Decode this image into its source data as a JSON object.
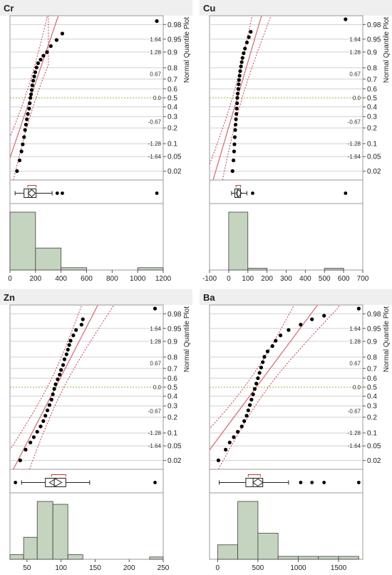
{
  "quantile_axis": {
    "label": "Normal Quantile Plot",
    "prob_ticks": [
      "0.98",
      "0.95",
      "0.9",
      "0.8",
      "0.7",
      "0.6",
      "0.5",
      "0.4",
      "0.3",
      "0.2",
      "0.1",
      "0.05",
      "0.02"
    ],
    "z_labels": [
      "1.64",
      "1.28",
      "0.67",
      "0.0",
      "-0.67",
      "-1.28",
      "-1.64"
    ]
  },
  "colors": {
    "fit_line": "#d9707a",
    "confidence_band": "#c73a52",
    "median_line": "#9ab33a",
    "hist_fill": "#c5d4be",
    "hist_stroke": "#404040",
    "bracket": "#c0392b",
    "point": "#000000",
    "grid": "#d0d0d0",
    "panel_border": "#9a9a9a",
    "header_bg": "#efefef"
  },
  "chart_data": [
    {
      "type": "histogram",
      "variable": "Cr",
      "title": "Cr",
      "xlim": [
        0,
        1200
      ],
      "x_ticks": [
        0,
        200,
        400,
        600,
        800,
        1000,
        1200
      ],
      "bins": [
        [
          0,
          200,
          1.0
        ],
        [
          200,
          400,
          0.38
        ],
        [
          400,
          600,
          0.04
        ],
        [
          1000,
          1200,
          0.04
        ]
      ],
      "boxplot": {
        "whisker_low": 40,
        "q1": 110,
        "median": 145,
        "mean": 170,
        "q3": 205,
        "whisker_high": 330,
        "bracket": [
          140,
          205
        ],
        "outliers": [
          370,
          410,
          1150
        ]
      },
      "quantile_points": [
        [
          55,
          -2.05
        ],
        [
          75,
          -1.75
        ],
        [
          90,
          -1.5
        ],
        [
          100,
          -1.3
        ],
        [
          110,
          -1.1
        ],
        [
          118,
          -0.9
        ],
        [
          125,
          -0.75
        ],
        [
          132,
          -0.6
        ],
        [
          140,
          -0.45
        ],
        [
          150,
          -0.3
        ],
        [
          155,
          -0.15
        ],
        [
          160,
          0.0
        ],
        [
          165,
          0.1
        ],
        [
          170,
          0.22
        ],
        [
          175,
          0.35
        ],
        [
          182,
          0.48
        ],
        [
          190,
          0.6
        ],
        [
          198,
          0.72
        ],
        [
          208,
          0.85
        ],
        [
          220,
          0.97
        ],
        [
          240,
          1.07
        ],
        [
          262,
          1.18
        ],
        [
          290,
          1.28
        ],
        [
          320,
          1.45
        ],
        [
          365,
          1.62
        ],
        [
          410,
          1.8
        ],
        [
          1150,
          2.15
        ]
      ],
      "fit": {
        "mean": 160,
        "sd": 95
      },
      "band_cap": 300
    },
    {
      "type": "histogram",
      "variable": "Cu",
      "title": "Cu",
      "xlim": [
        -100,
        700
      ],
      "x_ticks": [
        -100,
        0,
        100,
        200,
        300,
        400,
        500,
        600,
        700
      ],
      "bins": [
        [
          0,
          100,
          1.0
        ],
        [
          100,
          200,
          0.03
        ],
        [
          500,
          600,
          0.03
        ]
      ],
      "boxplot": {
        "whisker_low": 15,
        "q1": 32,
        "median": 45,
        "mean": 52,
        "q3": 62,
        "whisker_high": 95,
        "bracket": [
          38,
          62
        ],
        "outliers": [
          125,
          610
        ]
      },
      "quantile_points": [
        [
          20,
          -2.05
        ],
        [
          25,
          -1.75
        ],
        [
          28,
          -1.5
        ],
        [
          30,
          -1.3
        ],
        [
          32,
          -1.1
        ],
        [
          34,
          -0.9
        ],
        [
          36,
          -0.75
        ],
        [
          38,
          -0.6
        ],
        [
          40,
          -0.45
        ],
        [
          42,
          -0.3
        ],
        [
          44,
          -0.15
        ],
        [
          45,
          0.0
        ],
        [
          47,
          0.12
        ],
        [
          50,
          0.25
        ],
        [
          52,
          0.38
        ],
        [
          54,
          0.5
        ],
        [
          57,
          0.62
        ],
        [
          60,
          0.75
        ],
        [
          64,
          0.88
        ],
        [
          68,
          1.0
        ],
        [
          72,
          1.12
        ],
        [
          78,
          1.25
        ],
        [
          85,
          1.38
        ],
        [
          95,
          1.55
        ],
        [
          105,
          1.7
        ],
        [
          115,
          1.85
        ],
        [
          610,
          2.2
        ]
      ],
      "fit": {
        "mean": 45,
        "sd": 55
      },
      "band_cap": 270
    },
    {
      "type": "histogram",
      "variable": "Zn",
      "title": "Zn",
      "xlim": [
        25,
        250
      ],
      "x_ticks": [
        50,
        100,
        150,
        200,
        250
      ],
      "bins": [
        [
          25,
          45,
          0.08
        ],
        [
          45,
          65,
          0.38
        ],
        [
          65,
          88,
          1.0
        ],
        [
          88,
          110,
          0.95
        ],
        [
          110,
          132,
          0.08
        ],
        [
          230,
          250,
          0.04
        ]
      ],
      "boxplot": {
        "whisker_low": 42,
        "q1": 77,
        "median": 90,
        "mean": 92,
        "q3": 107,
        "whisker_high": 142,
        "bracket": [
          86,
          107
        ],
        "outliers": [
          33,
          238
        ]
      },
      "quantile_points": [
        [
          40,
          -2.05
        ],
        [
          48,
          -1.75
        ],
        [
          55,
          -1.55
        ],
        [
          60,
          -1.4
        ],
        [
          65,
          -1.25
        ],
        [
          70,
          -1.1
        ],
        [
          74,
          -0.95
        ],
        [
          77,
          -0.8
        ],
        [
          80,
          -0.65
        ],
        [
          83,
          -0.5
        ],
        [
          86,
          -0.35
        ],
        [
          88,
          -0.2
        ],
        [
          90,
          -0.05
        ],
        [
          92,
          0.08
        ],
        [
          95,
          0.22
        ],
        [
          98,
          0.35
        ],
        [
          100,
          0.48
        ],
        [
          103,
          0.62
        ],
        [
          105,
          0.78
        ],
        [
          108,
          0.92
        ],
        [
          110,
          1.05
        ],
        [
          112,
          1.18
        ],
        [
          114,
          1.3
        ],
        [
          118,
          1.45
        ],
        [
          122,
          1.6
        ],
        [
          130,
          1.75
        ],
        [
          132,
          1.9
        ],
        [
          238,
          2.2
        ]
      ],
      "fit": {
        "mean": 92,
        "sd": 27
      },
      "band_cap": 190
    },
    {
      "type": "histogram",
      "variable": "Ba",
      "title": "Ba",
      "xlim": [
        -100,
        1800
      ],
      "x_ticks": [
        0,
        500,
        1000,
        1500
      ],
      "bins": [
        [
          0,
          250,
          0.25
        ],
        [
          250,
          500,
          1.0
        ],
        [
          500,
          750,
          0.45
        ],
        [
          750,
          1000,
          0.05
        ],
        [
          1000,
          1250,
          0.05
        ],
        [
          1250,
          1500,
          0.05
        ],
        [
          1500,
          1750,
          0.05
        ]
      ],
      "boxplot": {
        "whisker_low": 20,
        "q1": 350,
        "median": 440,
        "mean": 500,
        "q3": 560,
        "whisker_high": 880,
        "bracket": [
          380,
          530
        ],
        "outliers": [
          1030,
          1170,
          1320,
          1750
        ]
      },
      "quantile_points": [
        [
          10,
          -2.05
        ],
        [
          100,
          -1.75
        ],
        [
          150,
          -1.55
        ],
        [
          200,
          -1.4
        ],
        [
          250,
          -1.25
        ],
        [
          300,
          -1.1
        ],
        [
          330,
          -0.95
        ],
        [
          360,
          -0.8
        ],
        [
          380,
          -0.65
        ],
        [
          400,
          -0.5
        ],
        [
          420,
          -0.35
        ],
        [
          440,
          -0.2
        ],
        [
          460,
          -0.05
        ],
        [
          480,
          0.1
        ],
        [
          500,
          0.25
        ],
        [
          520,
          0.4
        ],
        [
          540,
          0.55
        ],
        [
          560,
          0.7
        ],
        [
          580,
          0.85
        ],
        [
          620,
          1.0
        ],
        [
          680,
          1.15
        ],
        [
          720,
          1.3
        ],
        [
          780,
          1.45
        ],
        [
          880,
          1.6
        ],
        [
          1030,
          1.75
        ],
        [
          1170,
          1.9
        ],
        [
          1320,
          2.0
        ],
        [
          1750,
          2.2
        ]
      ],
      "fit": {
        "mean": 480,
        "sd": 330
      },
      "band_cap": 1500
    }
  ]
}
